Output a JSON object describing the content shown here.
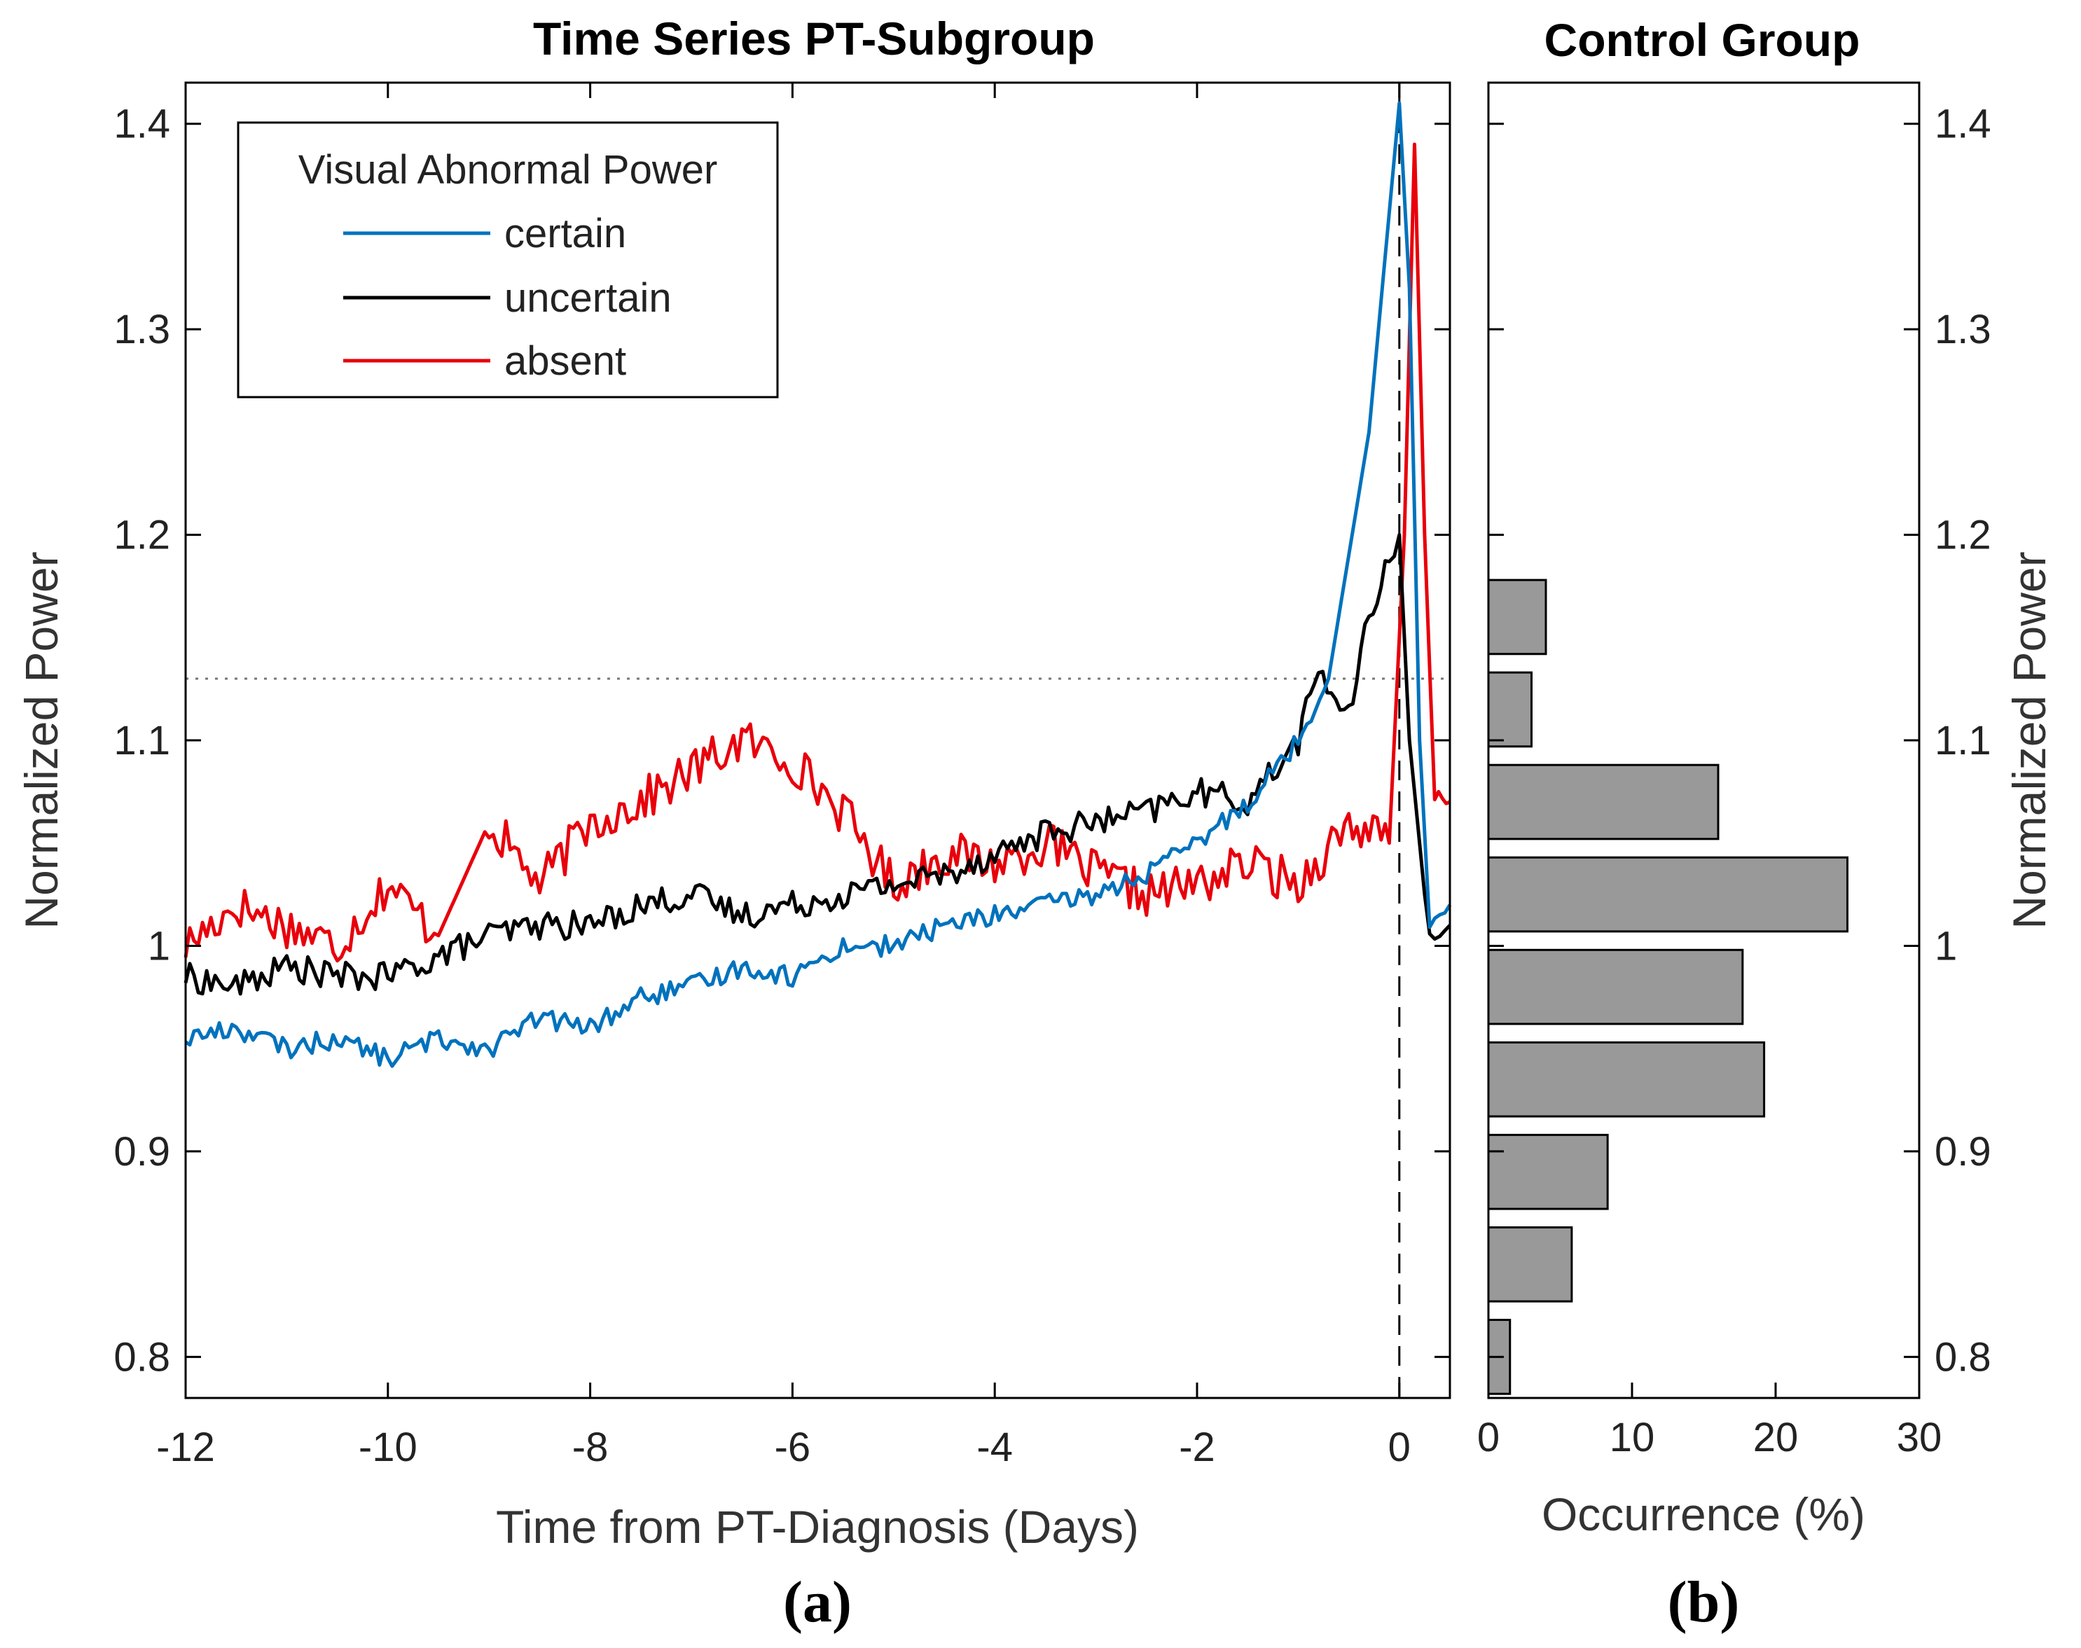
{
  "panel_a": {
    "title": "Time Series PT-Subgroup",
    "xlabel": "Time from PT-Diagnosis (Days)",
    "ylabel": "Normalized Power",
    "panel_label": "(a)",
    "xticks": [
      "-12",
      "-10",
      "-8",
      "-6",
      "-4",
      "-2",
      "0"
    ],
    "yticks": [
      "0.8",
      "0.9",
      "1",
      "1.1",
      "1.2",
      "1.3",
      "1.4"
    ],
    "legend": {
      "title": "Visual Abnormal Power",
      "entries": [
        "certain",
        "uncertain",
        "absent"
      ]
    }
  },
  "panel_b": {
    "title": "Control Group",
    "xlabel": "Occurrence (%)",
    "ylabel": "Normalized Power",
    "panel_label": "(b)",
    "xticks": [
      "0",
      "10",
      "20",
      "30"
    ],
    "yticks": [
      "0.8",
      "0.9",
      "1",
      "1.1",
      "1.2",
      "1.3",
      "1.4"
    ]
  },
  "colors": {
    "certain": "#0072BD",
    "uncertain": "#000000",
    "absent": "#E8000B",
    "bars": "#999999"
  },
  "chart_data": [
    {
      "type": "line",
      "title": "Time Series PT-Subgroup",
      "xlabel": "Time from PT-Diagnosis (Days)",
      "ylabel": "Normalized Power",
      "xlim": [
        -12,
        0.5
      ],
      "ylim": [
        0.78,
        1.42
      ],
      "threshold_line": 1.13,
      "event_line_x": 0,
      "series": [
        {
          "name": "certain",
          "x": [
            -12,
            -11.5,
            -11,
            -10.5,
            -10,
            -9.5,
            -9,
            -8.5,
            -8,
            -7.5,
            -7,
            -6.5,
            -6,
            -5.5,
            -5,
            -4.5,
            -4,
            -3.5,
            -3,
            -2.5,
            -2,
            -1.5,
            -1,
            -0.7,
            -0.5,
            -0.3,
            -0.15,
            0,
            0.1,
            0.2,
            0.3,
            0.4,
            0.5
          ],
          "y": [
            0.955,
            0.96,
            0.95,
            0.955,
            0.945,
            0.955,
            0.95,
            0.965,
            0.96,
            0.975,
            0.98,
            0.99,
            0.985,
            1.0,
            1.0,
            1.01,
            1.015,
            1.02,
            1.025,
            1.035,
            1.05,
            1.07,
            1.1,
            1.13,
            1.19,
            1.25,
            1.33,
            1.41,
            1.32,
            1.1,
            1.01,
            1.02,
            1.02
          ]
        },
        {
          "name": "uncertain",
          "x": [
            -12,
            -11.5,
            -11,
            -10.5,
            -10,
            -9.5,
            -9,
            -8.5,
            -8,
            -7.5,
            -7,
            -6.5,
            -6,
            -5.5,
            -5,
            -4.5,
            -4,
            -3.5,
            -3,
            -2.5,
            -2,
            -1.5,
            -1,
            -0.8,
            -0.5,
            -0.3,
            -0.1,
            0,
            0.1,
            0.2,
            0.3,
            0.4,
            0.5
          ],
          "y": [
            0.985,
            0.98,
            0.99,
            0.985,
            0.985,
            0.995,
            1.005,
            1.01,
            1.01,
            1.02,
            1.025,
            1.015,
            1.02,
            1.025,
            1.03,
            1.035,
            1.045,
            1.055,
            1.06,
            1.065,
            1.075,
            1.07,
            1.1,
            1.135,
            1.11,
            1.16,
            1.19,
            1.2,
            1.1,
            1.05,
            1.0,
            1.005,
            1.01
          ]
        },
        {
          "name": "absent",
          "x": [
            -12,
            -11.5,
            -11,
            -10.5,
            -10,
            -9.5,
            -9,
            -8.5,
            -8,
            -7.5,
            -7,
            -6.5,
            -6,
            -5.5,
            -5,
            -4.5,
            -4,
            -3.5,
            -3,
            -2.5,
            -2,
            -1.5,
            -1,
            -0.5,
            -0.1,
            0.05,
            0.15,
            0.25,
            0.35,
            0.5
          ],
          "y": [
            1.0,
            1.02,
            1.01,
            1.0,
            1.03,
            1.005,
            1.06,
            1.03,
            1.06,
            1.07,
            1.085,
            1.1,
            1.09,
            1.065,
            1.03,
            1.045,
            1.04,
            1.05,
            1.035,
            1.025,
            1.03,
            1.04,
            1.03,
            1.06,
            1.05,
            1.2,
            1.39,
            1.2,
            1.07,
            1.07
          ]
        }
      ]
    },
    {
      "type": "bar",
      "orientation": "horizontal",
      "title": "Control Group",
      "xlabel": "Occurrence (%)",
      "ylabel": "Normalized Power",
      "xlim": [
        0,
        30
      ],
      "ylim": [
        0.78,
        1.42
      ],
      "bins": [
        {
          "center": 0.8,
          "value": 1.5
        },
        {
          "center": 0.845,
          "value": 5.8
        },
        {
          "center": 0.89,
          "value": 8.3
        },
        {
          "center": 0.935,
          "value": 19.2
        },
        {
          "center": 0.98,
          "value": 17.7
        },
        {
          "center": 1.025,
          "value": 25.0
        },
        {
          "center": 1.07,
          "value": 16.0
        },
        {
          "center": 1.115,
          "value": 3.0
        },
        {
          "center": 1.16,
          "value": 4.0
        }
      ]
    }
  ]
}
